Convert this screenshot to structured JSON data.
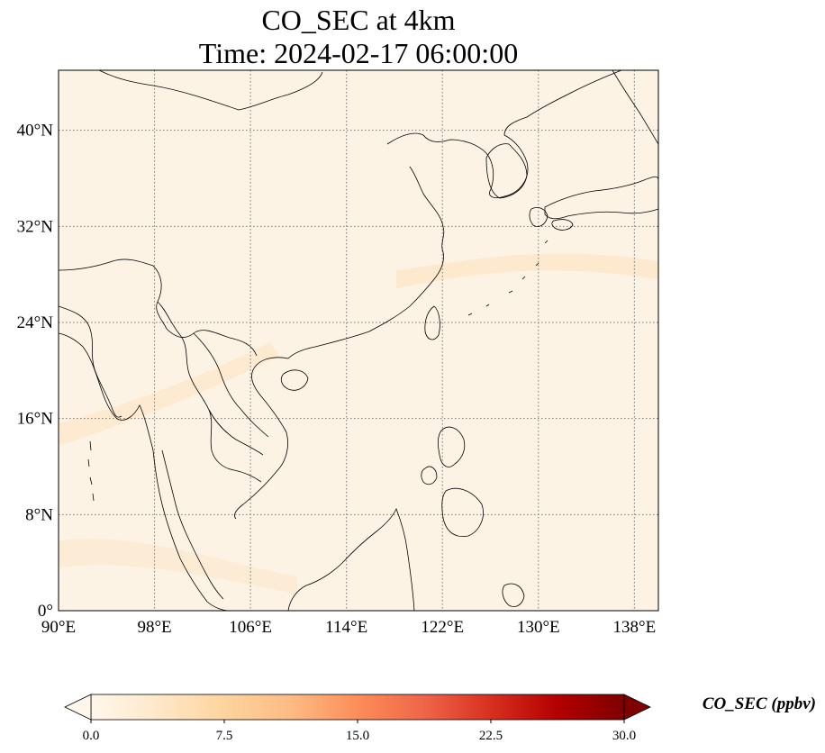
{
  "title": {
    "line1": "CO_SEC at 4km",
    "line2": "Time: 2024-02-17 06:00:00"
  },
  "map": {
    "lon_range": [
      90,
      140
    ],
    "lat_range": [
      0,
      45
    ],
    "lon_ticks": [
      {
        "value": 90,
        "label": "90°E"
      },
      {
        "value": 98,
        "label": "98°E"
      },
      {
        "value": 106,
        "label": "106°E"
      },
      {
        "value": 114,
        "label": "114°E"
      },
      {
        "value": 122,
        "label": "122°E"
      },
      {
        "value": 130,
        "label": "130°E"
      },
      {
        "value": 138,
        "label": "138°E"
      }
    ],
    "lat_ticks": [
      {
        "value": 0,
        "label": "0°"
      },
      {
        "value": 8,
        "label": "8°N"
      },
      {
        "value": 16,
        "label": "16°N"
      },
      {
        "value": 24,
        "label": "24°N"
      },
      {
        "value": 32,
        "label": "32°N"
      },
      {
        "value": 40,
        "label": "40°N"
      }
    ],
    "gridlines": true,
    "gridline_style": "dotted",
    "background_color": "#fdf3e4",
    "coastline_color": "#000000"
  },
  "colorbar": {
    "label": "CO_SEC (ppbv)",
    "min": 0.0,
    "max": 30.0,
    "extend": "both",
    "colormap": "OrRd",
    "stops": [
      "#fff7ec",
      "#fee8c8",
      "#fdd49e",
      "#fdbb84",
      "#fc8d59",
      "#ef6548",
      "#d7301f",
      "#b30000",
      "#7f0000"
    ],
    "ticks": [
      {
        "value": 0.0,
        "label": "0.0"
      },
      {
        "value": 7.5,
        "label": "7.5"
      },
      {
        "value": 15.0,
        "label": "15.0"
      },
      {
        "value": 22.5,
        "label": "22.5"
      },
      {
        "value": 30.0,
        "label": "30.0"
      }
    ]
  }
}
